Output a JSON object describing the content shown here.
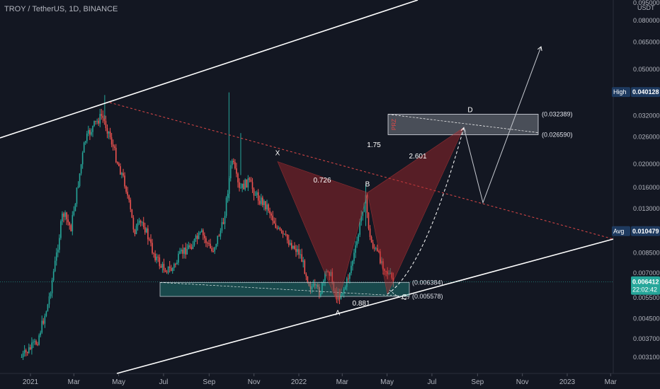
{
  "chart_data": {
    "type": "candlestick",
    "title": "TROY / TetherUS, 1D, BINANCE",
    "currency": "USDT",
    "y_scale": "log",
    "ylim": [
      0.0028,
      0.095
    ],
    "y_ticks": [
      "0.003100",
      "0.003700",
      "0.004500",
      "0.005500",
      "0.007000",
      "0.008500",
      "0.010500",
      "0.013000",
      "0.016000",
      "0.020000",
      "0.026000",
      "0.032000",
      "0.040000",
      "0.050000",
      "0.065000",
      "0.080000",
      "0.095000"
    ],
    "x_ticks": [
      "2021",
      "Mar",
      "May",
      "Jul",
      "Sep",
      "Nov",
      "2022",
      "Mar",
      "May",
      "Jul",
      "Sep",
      "Nov",
      "2023",
      "Mar"
    ],
    "markers": {
      "high": {
        "label": "High",
        "value": "0.040128"
      },
      "avg": {
        "label": "Avg",
        "value": "0.010479"
      },
      "last": {
        "value": "0.006412",
        "countdown": "22:02:42"
      }
    },
    "zones": [
      {
        "top": "0.032389",
        "bottom": "0.026590",
        "label": "D"
      },
      {
        "top": "0.006384",
        "bottom": "0.005578"
      }
    ],
    "pattern_points": [
      {
        "name": "X",
        "price": 0.0205
      },
      {
        "name": "A",
        "price": 0.0052
      },
      {
        "name": "B",
        "price": 0.0152
      },
      {
        "name": "C",
        "price": 0.0057
      },
      {
        "name": "D",
        "price": 0.0285
      }
    ],
    "ratios": [
      "0.726",
      "0.881",
      "1.75",
      "2.601"
    ],
    "zone_tag": "PRZ",
    "last_price": 0.006412,
    "series_path": [
      {
        "x": "2020-12-20",
        "y": 0.0031
      },
      {
        "x": "2021-01-10",
        "y": 0.0036
      },
      {
        "x": "2021-01-25",
        "y": 0.0052
      },
      {
        "x": "2021-02-05",
        "y": 0.0082
      },
      {
        "x": "2021-02-14",
        "y": 0.0125
      },
      {
        "x": "2021-02-25",
        "y": 0.0108
      },
      {
        "x": "2021-03-06",
        "y": 0.016
      },
      {
        "x": "2021-03-16",
        "y": 0.025
      },
      {
        "x": "2021-03-28",
        "y": 0.029
      },
      {
        "x": "2021-04-08",
        "y": 0.032
      },
      {
        "x": "2021-04-18",
        "y": 0.027
      },
      {
        "x": "2021-04-28",
        "y": 0.021
      },
      {
        "x": "2021-05-10",
        "y": 0.0165
      },
      {
        "x": "2021-05-22",
        "y": 0.0105
      },
      {
        "x": "2021-06-03",
        "y": 0.0115
      },
      {
        "x": "2021-06-15",
        "y": 0.0088
      },
      {
        "x": "2021-06-28",
        "y": 0.0074
      },
      {
        "x": "2021-07-12",
        "y": 0.0072
      },
      {
        "x": "2021-07-26",
        "y": 0.0085
      },
      {
        "x": "2021-08-08",
        "y": 0.0092
      },
      {
        "x": "2021-08-22",
        "y": 0.0102
      },
      {
        "x": "2021-09-05",
        "y": 0.0086
      },
      {
        "x": "2021-09-20",
        "y": 0.0112
      },
      {
        "x": "2021-10-02",
        "y": 0.021
      },
      {
        "x": "2021-10-12",
        "y": 0.0155
      },
      {
        "x": "2021-10-24",
        "y": 0.017
      },
      {
        "x": "2021-11-06",
        "y": 0.0145
      },
      {
        "x": "2021-11-20",
        "y": 0.0132
      },
      {
        "x": "2021-12-04",
        "y": 0.0105
      },
      {
        "x": "2021-12-18",
        "y": 0.0095
      },
      {
        "x": "2022-01-02",
        "y": 0.0085
      },
      {
        "x": "2022-01-16",
        "y": 0.0062
      },
      {
        "x": "2022-01-30",
        "y": 0.0058
      },
      {
        "x": "2022-02-10",
        "y": 0.0074
      },
      {
        "x": "2022-02-22",
        "y": 0.0055
      },
      {
        "x": "2022-03-06",
        "y": 0.0062
      },
      {
        "x": "2022-03-20",
        "y": 0.009
      },
      {
        "x": "2022-04-01",
        "y": 0.015
      },
      {
        "x": "2022-04-08",
        "y": 0.0096
      },
      {
        "x": "2022-04-20",
        "y": 0.0082
      },
      {
        "x": "2022-05-02",
        "y": 0.007
      },
      {
        "x": "2022-05-10",
        "y": 0.0064
      }
    ]
  }
}
